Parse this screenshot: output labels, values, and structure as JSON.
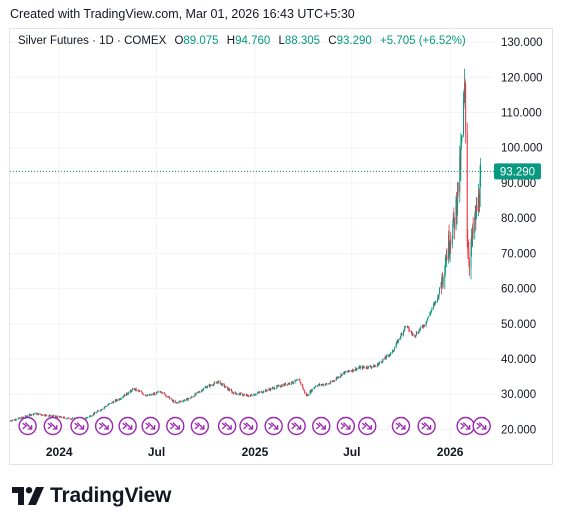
{
  "caption": "Created with TradingView.com, Mar 01, 2026 16:43 UTC+5:30",
  "legend": {
    "symbol": "Silver Futures · 1D · COMEX",
    "open_label": "O",
    "open": "89.075",
    "high_label": "H",
    "high": "94.760",
    "low_label": "L",
    "low": "88.305",
    "close_label": "C",
    "close": "93.290",
    "change": "+5.705 (+6.52%)"
  },
  "last_price_badge": "93.290",
  "colors": {
    "up": "#089981",
    "down": "#f23645",
    "grid": "#f0f3fa",
    "badge": "#089981",
    "event": "#9c27b0"
  },
  "brand": "TradingView",
  "icons": {
    "event_marker": "event-marker-icon",
    "logo": "tradingview-logo-icon"
  },
  "chart_data": {
    "type": "candlestick",
    "title": "Silver Futures · 1D · COMEX",
    "y_ticks": [
      "130.000",
      "120.000",
      "110.000",
      "100.000",
      "90.000",
      "80.000",
      "70.000",
      "60.000",
      "50.000",
      "40.000",
      "30.000",
      "20.000"
    ],
    "y_tick_values": [
      130,
      120,
      110,
      100,
      90,
      80,
      70,
      60,
      50,
      40,
      30,
      20
    ],
    "ylim": [
      17,
      134
    ],
    "x_ticks": [
      "2024",
      "Jul",
      "2025",
      "Jul",
      "2026"
    ],
    "x_tick_dates": [
      "2024-01-01",
      "2024-07-01",
      "2025-01-01",
      "2025-07-01",
      "2026-01-01"
    ],
    "x_range": [
      "2023-10-01",
      "2026-03-24"
    ],
    "last_price": 93.29,
    "close_path": [
      [
        "2023-10-01",
        22.5
      ],
      [
        "2023-10-20",
        23.2
      ],
      [
        "2023-11-15",
        24.5
      ],
      [
        "2023-12-10",
        24.0
      ],
      [
        "2024-01-15",
        23.2
      ],
      [
        "2024-02-15",
        22.8
      ],
      [
        "2024-03-10",
        24.8
      ],
      [
        "2024-04-01",
        27.0
      ],
      [
        "2024-04-20",
        28.5
      ],
      [
        "2024-05-20",
        31.5
      ],
      [
        "2024-06-15",
        29.5
      ],
      [
        "2024-07-10",
        30.8
      ],
      [
        "2024-08-05",
        27.5
      ],
      [
        "2024-09-01",
        28.8
      ],
      [
        "2024-10-01",
        32.0
      ],
      [
        "2024-10-25",
        33.5
      ],
      [
        "2024-11-20",
        30.5
      ],
      [
        "2024-12-20",
        29.5
      ],
      [
        "2025-01-20",
        31.0
      ],
      [
        "2025-02-20",
        32.5
      ],
      [
        "2025-03-25",
        34.0
      ],
      [
        "2025-04-07",
        29.5
      ],
      [
        "2025-04-25",
        32.5
      ],
      [
        "2025-05-20",
        33.0
      ],
      [
        "2025-06-15",
        36.0
      ],
      [
        "2025-07-15",
        37.5
      ],
      [
        "2025-08-15",
        38.0
      ],
      [
        "2025-09-15",
        42.0
      ],
      [
        "2025-10-10",
        49.5
      ],
      [
        "2025-10-25",
        46.5
      ],
      [
        "2025-11-15",
        50.0
      ],
      [
        "2025-12-10",
        58.0
      ],
      [
        "2025-12-28",
        72.0
      ],
      [
        "2026-01-10",
        80.0
      ],
      [
        "2026-01-20",
        95.0
      ],
      [
        "2026-01-29",
        118.0
      ],
      [
        "2026-02-02",
        75.0
      ],
      [
        "2026-02-06",
        68.0
      ],
      [
        "2026-02-15",
        78.0
      ],
      [
        "2026-02-25",
        87.0
      ],
      [
        "2026-03-01",
        93.29
      ]
    ],
    "event_marker_dates": [
      "2023-11-03",
      "2023-12-20",
      "2024-02-08",
      "2024-03-25",
      "2024-05-08",
      "2024-06-20",
      "2024-08-05",
      "2024-09-20",
      "2024-11-10",
      "2024-12-20",
      "2025-02-05",
      "2025-03-20",
      "2025-05-05",
      "2025-06-20",
      "2025-07-30",
      "2025-10-01",
      "2025-11-18",
      "2026-01-30",
      "2026-03-01"
    ]
  }
}
